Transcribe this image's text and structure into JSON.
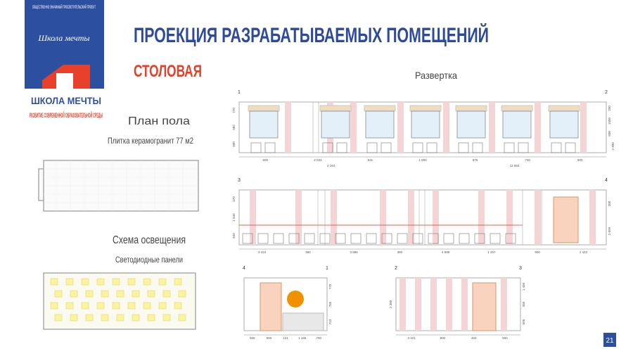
{
  "logo": {
    "top": "ОБЩЕСТВЕННО ЗНАЧИМЫЙ ПРОСВЕТИТЕЛЬСКИЙ ПРОЕКТ",
    "script": "Школа мечты",
    "name": "ШКОЛА МЕЧТЫ",
    "tagline": "РАЗВИТИЕ СОВРЕМЕННОЙ ОБРАЗОВАТЕЛЬНОЙ СРЕДЫ"
  },
  "header": {
    "title": "ПРОЕКЦИЯ РАЗРАБАТЫВАЕМЫХ ПОМЕЩЕНИЙ",
    "subtitle": "СТОЛОВАЯ"
  },
  "floor_plan": {
    "title": "План пола",
    "note": "Плитка керамогранит 77 м2"
  },
  "lighting": {
    "title": "Схема освещения",
    "note": "Светодиодные панели"
  },
  "elevation": {
    "title": "Развертка",
    "walls": [
      {
        "corners": [
          "1",
          "2"
        ],
        "left": [
          "770",
          "982",
          "600"
        ],
        "right": [
          "200",
          "1500",
          "600",
          "2 300"
        ],
        "bottom": [
          "500",
          "2 033",
          "631",
          "1 000",
          "975",
          "740",
          "500",
          "3 164",
          "12 683"
        ]
      },
      {
        "corners": [
          "3",
          "4"
        ],
        "left": [
          "470",
          "1 840",
          "849"
        ],
        "right": [
          "200",
          "2 099"
        ],
        "bottom": [
          "3 424",
          "380",
          "3 886",
          "380",
          "4 598",
          "1 257",
          "900",
          "1 423"
        ]
      },
      {
        "corners": [
          "4",
          "1"
        ],
        "right": [
          "770",
          "785",
          "723"
        ],
        "bottom": [
          "565",
          "900",
          "121",
          "1 165",
          "700"
        ]
      },
      {
        "corners": [
          "2",
          "3"
        ],
        "left": [
          "2 300"
        ],
        "right": [
          "1 450",
          "350",
          "500"
        ],
        "bottom": [
          "3 421",
          "900",
          "483",
          "500"
        ]
      }
    ]
  },
  "page_number": "21"
}
